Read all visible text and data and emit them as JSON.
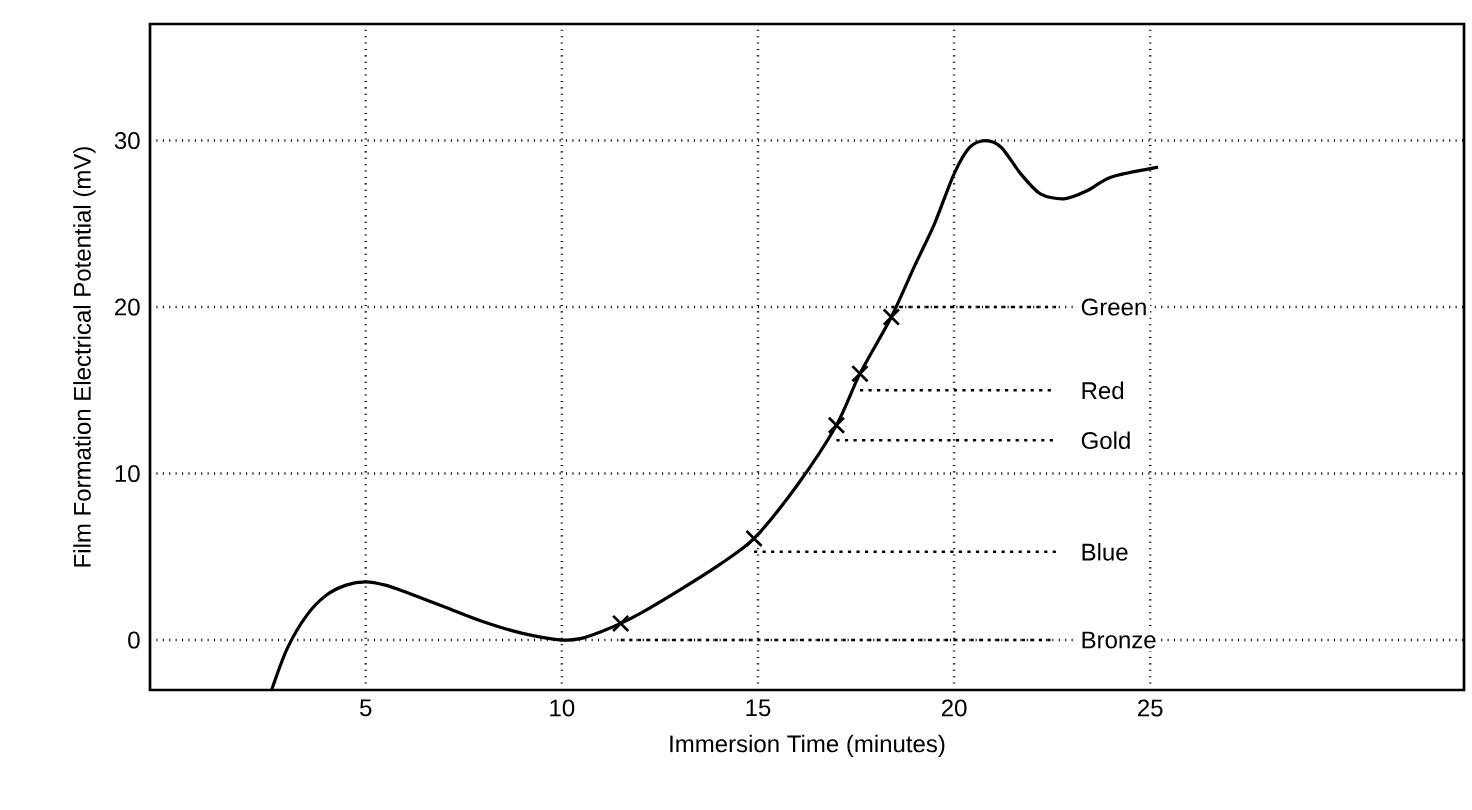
{
  "chart_data": {
    "type": "line",
    "xlabel": "Immersion Time  (minutes)",
    "ylabel": "Film Formation Electrical Potential (mV)",
    "xlim": [
      -0.5,
      33
    ],
    "ylim": [
      -3,
      37
    ],
    "xticks": [
      5,
      10,
      15,
      20,
      25
    ],
    "yticks": [
      0,
      10,
      20,
      30
    ],
    "grid": true,
    "series": [
      {
        "type": "line",
        "color": "#000000",
        "x": [
          2.6,
          3,
          3.5,
          4,
          4.5,
          5,
          5.5,
          6,
          7,
          8,
          9,
          10,
          10.5,
          11,
          11.5,
          12,
          13,
          14,
          14.9,
          16,
          17,
          17.6,
          18.4,
          19,
          19.5,
          20,
          20.4,
          20.8,
          21.2,
          21.7,
          22.2,
          22.8,
          23.4,
          24,
          25.2
        ],
        "values": [
          -3,
          -0.5,
          1.5,
          2.7,
          3.3,
          3.5,
          3.3,
          2.9,
          2,
          1.1,
          0.4,
          0,
          0.1,
          0.5,
          1,
          1.6,
          3,
          4.5,
          6.1,
          9.3,
          12.9,
          16,
          19.4,
          22.5,
          25,
          28,
          29.6,
          30,
          29.6,
          28,
          26.8,
          26.5,
          27,
          27.8,
          28.4
        ]
      },
      {
        "type": "scatter",
        "color": "#000000",
        "marker": "cross",
        "x": [
          11.5,
          14.9,
          17,
          17.6,
          18.4
        ],
        "values": [
          1,
          6.1,
          12.9,
          16,
          19.4
        ]
      },
      {
        "name": "Bronze",
        "color": "#000000",
        "line_style": "dotted",
        "x": [
          11.5,
          22.6
        ],
        "values": [
          0,
          0
        ]
      },
      {
        "name": "Blue",
        "color": "#000000",
        "line_style": "dotted",
        "x": [
          14.9,
          22.6
        ],
        "values": [
          5.3,
          5.3
        ]
      },
      {
        "name": "Gold",
        "color": "#000000",
        "line_style": "dotted",
        "x": [
          17,
          22.6
        ],
        "values": [
          12,
          12
        ]
      },
      {
        "name": "Red",
        "color": "#000000",
        "line_style": "dotted",
        "x": [
          17.6,
          22.6
        ],
        "values": [
          15,
          15
        ]
      },
      {
        "name": "Green",
        "color": "#000000",
        "line_style": "dotted",
        "x": [
          18.4,
          22.6
        ],
        "values": [
          20,
          20
        ]
      }
    ]
  }
}
